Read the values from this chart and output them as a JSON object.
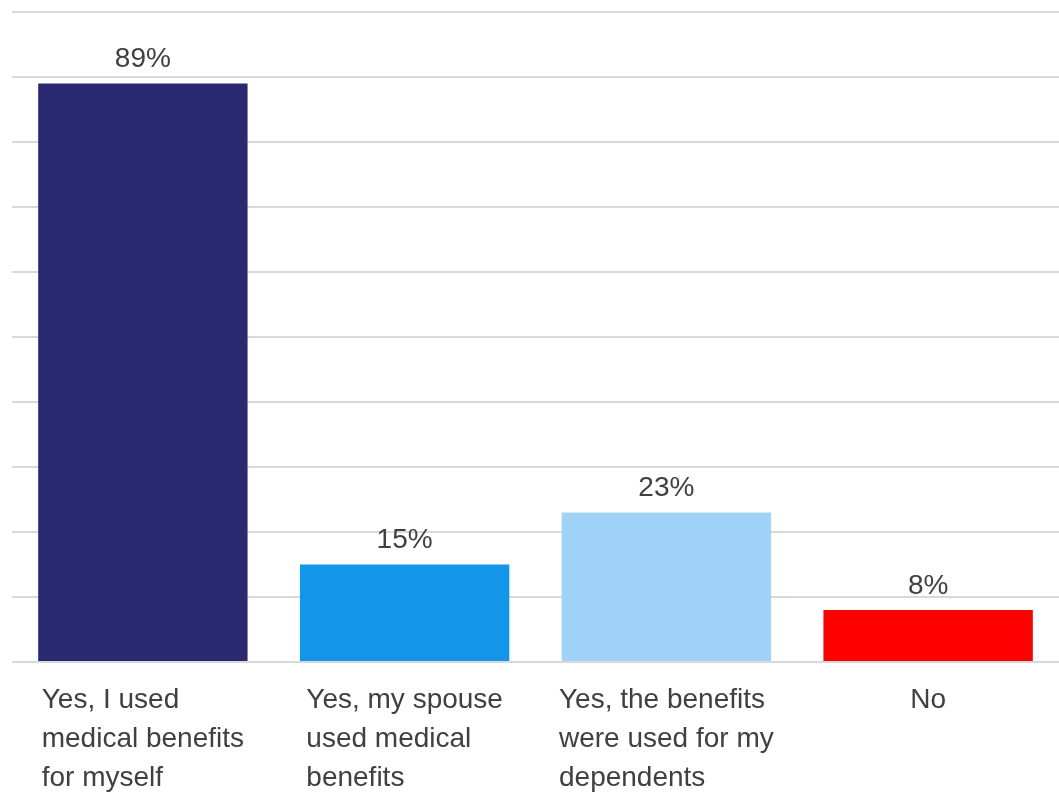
{
  "chart_data": {
    "type": "bar",
    "categories": [
      "Yes, I used medical benefits for myself",
      "Yes, my spouse used medical benefits",
      "Yes, the benefits were used for my dependents",
      "No"
    ],
    "values": [
      89,
      15,
      23,
      8
    ],
    "value_labels": [
      "89%",
      "15%",
      "23%",
      "8%"
    ],
    "colors": [
      "#2a2a72",
      "#1395ea",
      "#a1d3f8",
      "#ff0000"
    ],
    "tick_labels": "x",
    "grid": "y",
    "legend": false
  }
}
